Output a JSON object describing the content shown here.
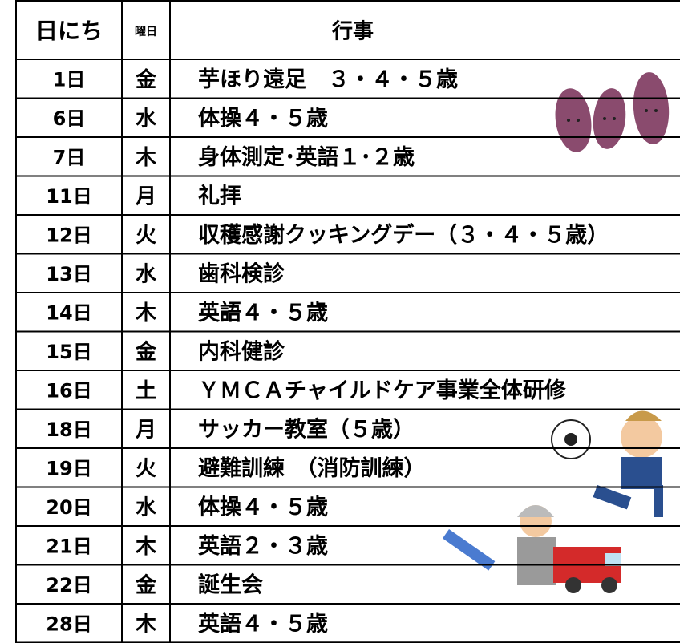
{
  "table": {
    "header": [
      "日にち",
      "曜日",
      "行事"
    ],
    "rows": [
      [
        "1日",
        "金",
        "芋ほり遠足　３・４・５歳"
      ],
      [
        "6日",
        "水",
        "体操４・５歳"
      ],
      [
        "7日",
        "木",
        "身体測定･英語１･２歳"
      ],
      [
        "11日",
        "月",
        "礼拝"
      ],
      [
        "12日",
        "火",
        "収穫感謝クッキングデー（３・４・５歳）"
      ],
      [
        "13日",
        "水",
        "歯科検診"
      ],
      [
        "14日",
        "木",
        "英語４・５歳"
      ],
      [
        "15日",
        "金",
        "内科健診"
      ],
      [
        "16日",
        "土",
        "ＹＭＣＡチャイルドケア事業全体研修"
      ],
      [
        "18日",
        "月",
        "サッカー教室（５歳）"
      ],
      [
        "19日",
        "火",
        "避難訓練　（消防訓練）"
      ],
      [
        "20日",
        "水",
        "体操４・５歳"
      ],
      [
        "21日",
        "木",
        "英語２・３歳"
      ],
      [
        "22日",
        "金",
        "誕生会"
      ],
      [
        "28日",
        "木",
        "英語４・５歳"
      ]
    ]
  }
}
